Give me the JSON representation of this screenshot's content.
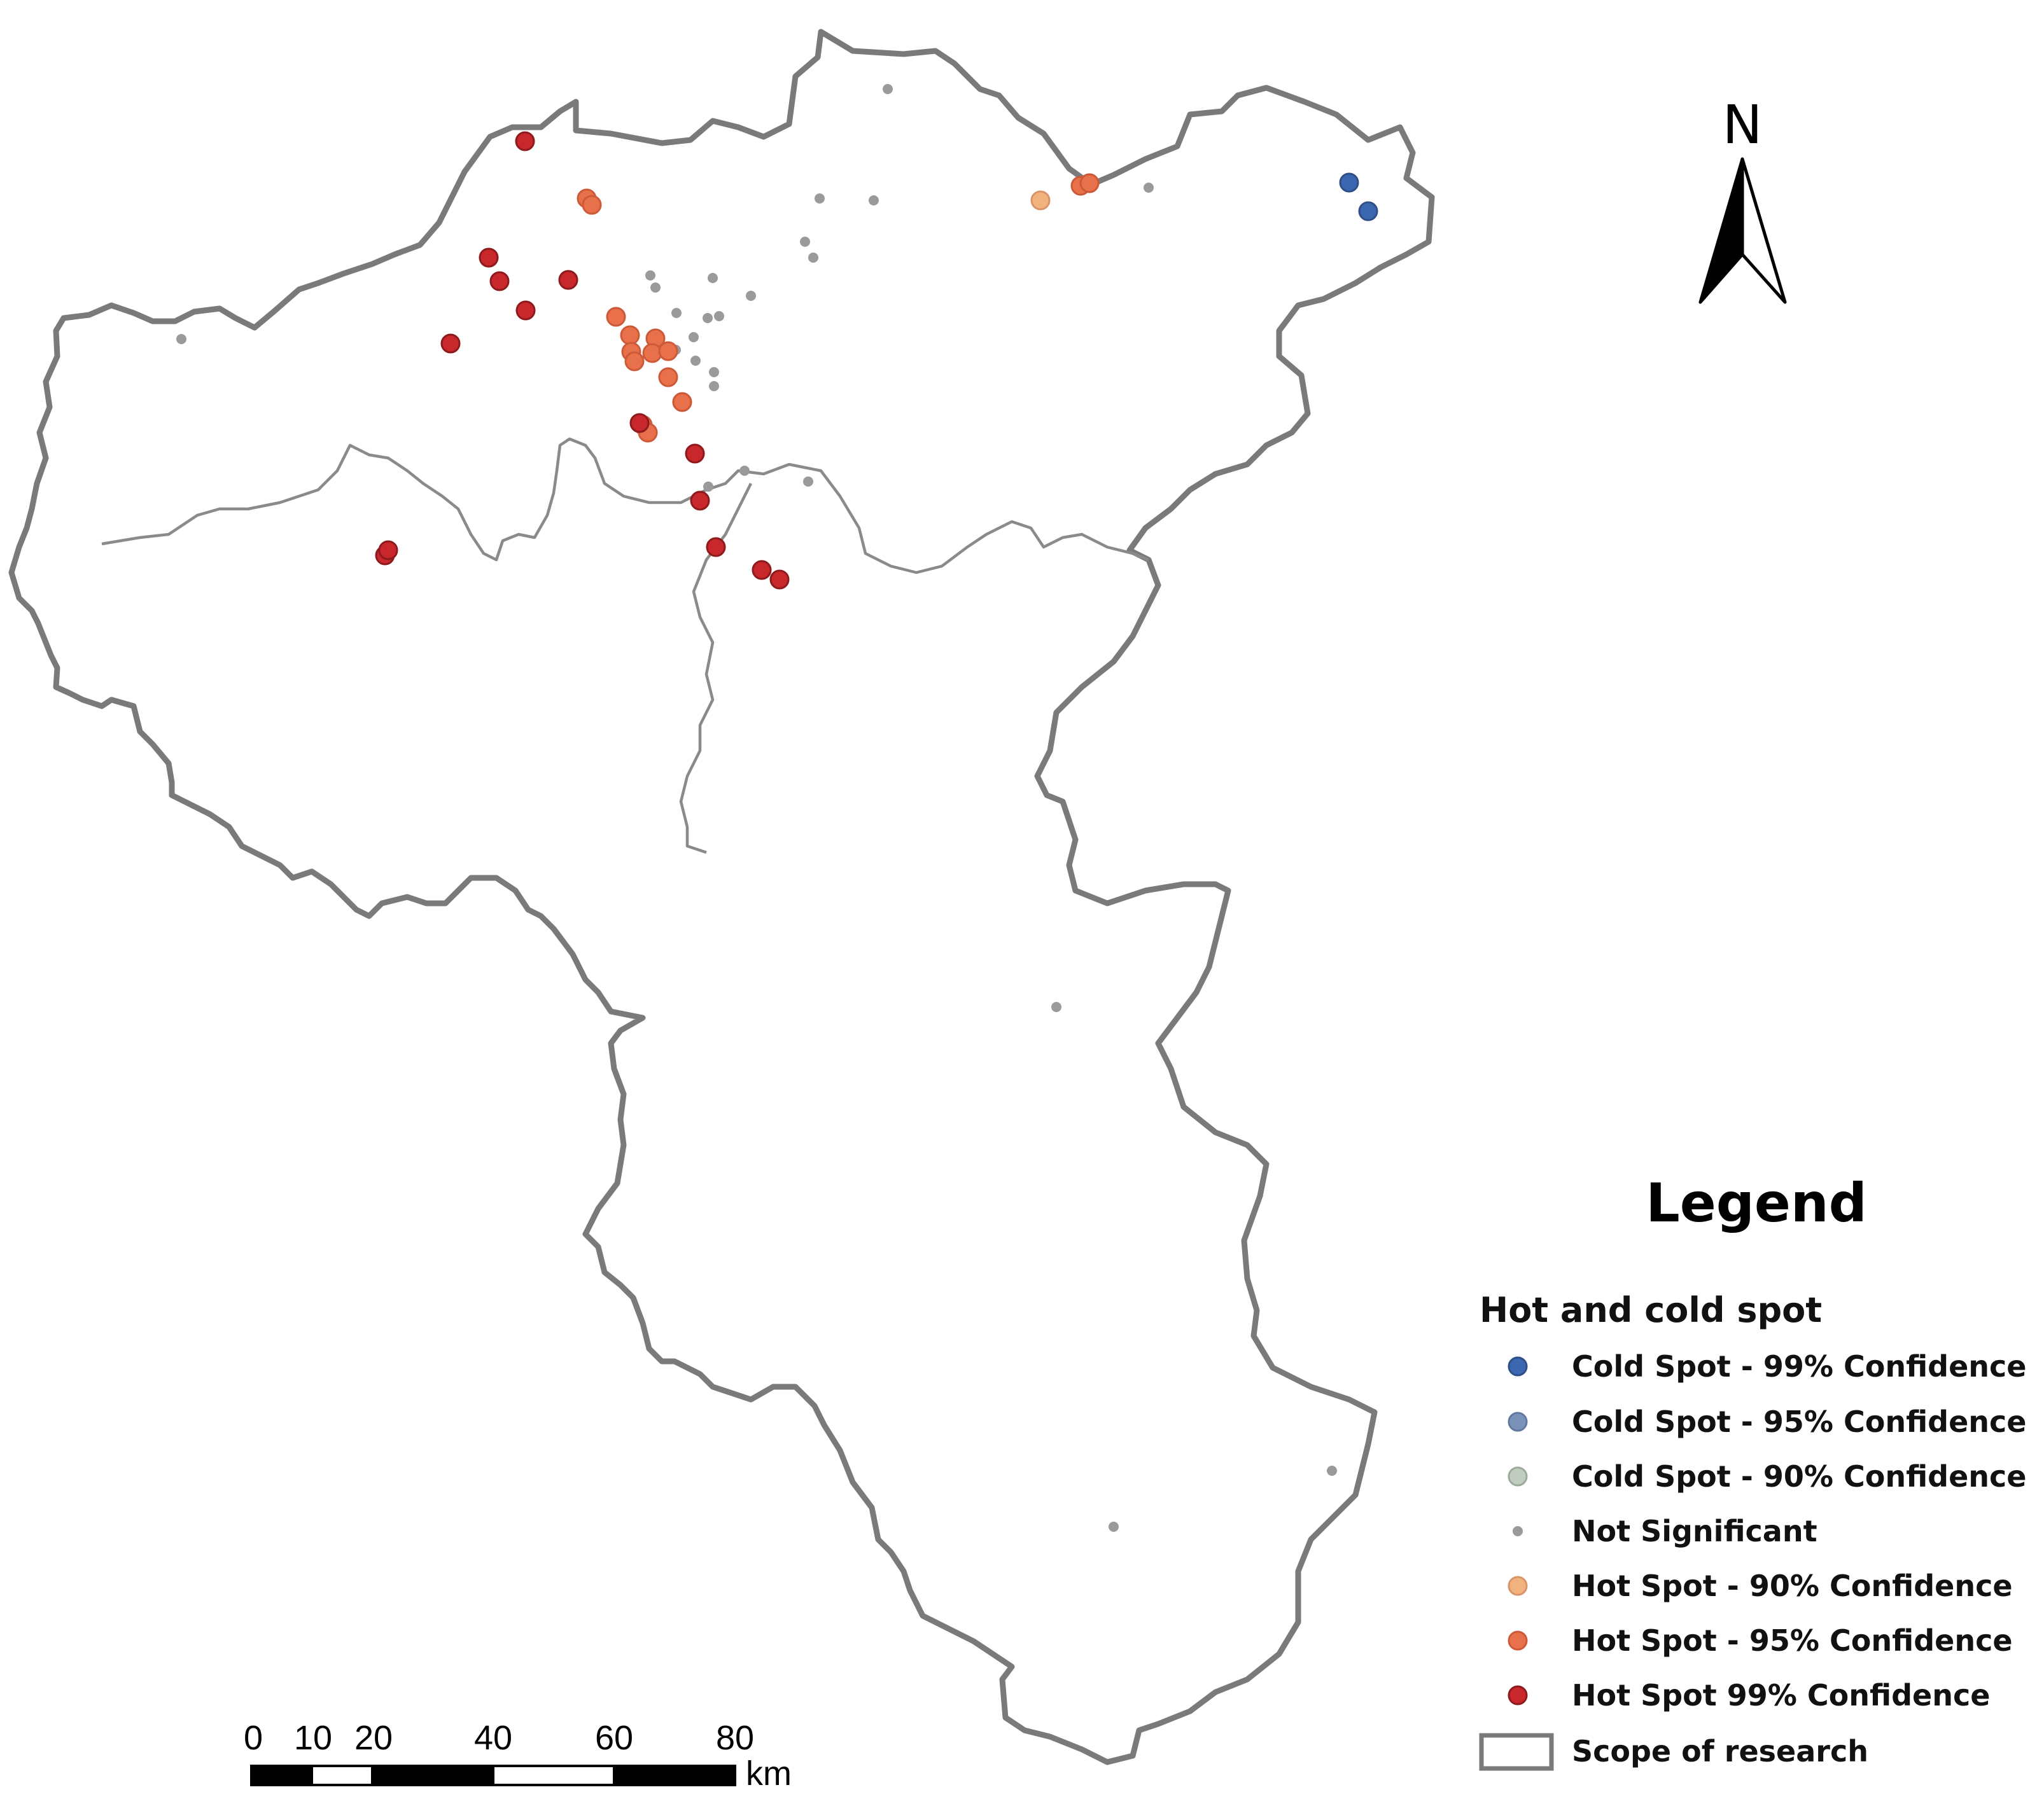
{
  "north_arrow": {
    "label": "N"
  },
  "legend": {
    "title": "Legend",
    "subtitle": "Hot and cold spot",
    "items": [
      {
        "label": "Cold Spot - 99% Confidence",
        "color": "#3b67b0",
        "symbol": "circle"
      },
      {
        "label": "Cold Spot - 95% Confidence",
        "color": "#7b92b8",
        "symbol": "circle"
      },
      {
        "label": "Cold Spot - 90% Confidence",
        "color": "#c0cdbf",
        "symbol": "circle"
      },
      {
        "label": "Not Significant",
        "color": "#9a9a9a",
        "symbol": "small-dot"
      },
      {
        "label": "Hot Spot - 90% Confidence",
        "color": "#f2b27e",
        "symbol": "circle"
      },
      {
        "label": "Hot Spot - 95% Confidence",
        "color": "#e8704a",
        "symbol": "circle"
      },
      {
        "label": "Hot Spot 99% Confidence",
        "color": "#c8272b",
        "symbol": "circle"
      },
      {
        "label": "Scope of research",
        "color": "#7a7a7a",
        "symbol": "outline-box"
      }
    ]
  },
  "scale_bar": {
    "ticks": [
      "0",
      "10",
      "20",
      "40",
      "60",
      "80"
    ],
    "unit": "km"
  },
  "colors": {
    "boundary_outer": "#7a7a7a",
    "boundary_inner": "#8a8a8a"
  }
}
